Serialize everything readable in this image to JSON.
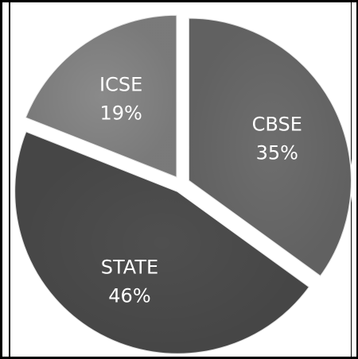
{
  "chart_data": {
    "type": "pie",
    "exploded": true,
    "start_angle_deg": 0,
    "direction": "clockwise",
    "slices": [
      {
        "label": "CBSE",
        "value": 35,
        "percent_label": "35%",
        "color": "#6e6e6e"
      },
      {
        "label": "STATE",
        "value": 46,
        "percent_label": "46%",
        "color": "#4f4f4f"
      },
      {
        "label": "ICSE",
        "value": 19,
        "percent_label": "19%",
        "color": "#8a8a8a"
      }
    ]
  }
}
